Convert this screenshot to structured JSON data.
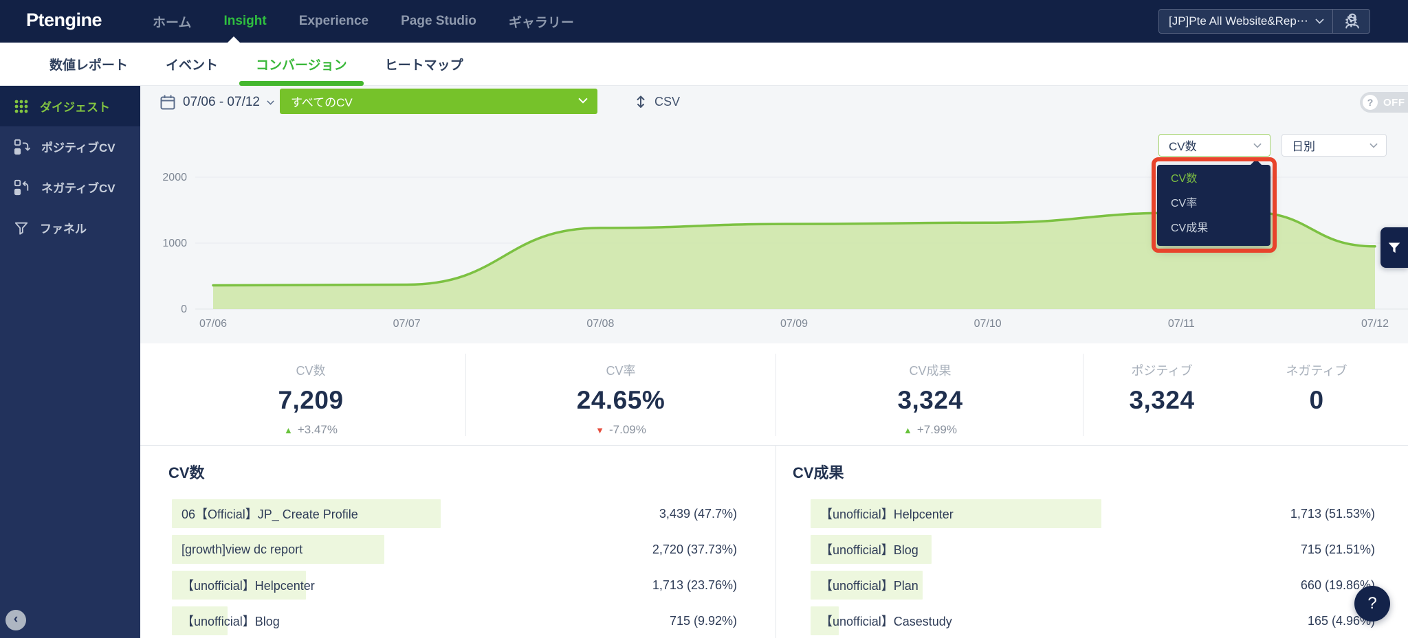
{
  "app": {
    "logo_text": "Ptengine"
  },
  "top_nav": {
    "items": [
      {
        "label": "ホーム"
      },
      {
        "label": "Insight"
      },
      {
        "label": "Experience"
      },
      {
        "label": "Page Studio"
      },
      {
        "label": "ギャラリー"
      }
    ],
    "workspace_selector": {
      "value": "[JP]Pte All Website&Rep⋯"
    }
  },
  "sub_nav": {
    "tabs": [
      {
        "label": "数値レポート"
      },
      {
        "label": "イベント"
      },
      {
        "label": "コンバージョン"
      },
      {
        "label": "ヒートマップ"
      }
    ]
  },
  "sidebar": {
    "items": [
      {
        "label": "ダイジェスト"
      },
      {
        "label": "ポジティブCV"
      },
      {
        "label": "ネガティブCV"
      },
      {
        "label": "ファネル"
      }
    ]
  },
  "toolbar": {
    "date_range": "07/06 - 07/12",
    "cv_filter_value": "すべてのCV",
    "csv_label": "CSV",
    "help_toggle": {
      "icon": "?",
      "state": "OFF"
    }
  },
  "chart_controls": {
    "metric_value": "CV数",
    "interval_value": "日別",
    "dropdown_options": [
      {
        "label": "CV数",
        "selected": true
      },
      {
        "label": "CV率",
        "selected": false
      },
      {
        "label": "CV成果",
        "selected": false
      }
    ]
  },
  "chart_data": {
    "type": "area",
    "series": [
      {
        "name": "CV数",
        "x": [
          0,
          1,
          2,
          3,
          4,
          5,
          5.35,
          6
        ],
        "values": [
          360,
          370,
          1230,
          1290,
          1310,
          1460,
          1470,
          950
        ]
      }
    ],
    "x_tick_labels": [
      "07/06",
      "07/07",
      "07/08",
      "07/09",
      "07/10",
      "07/11",
      "07/12"
    ],
    "y_ticks": [
      0,
      1000,
      2000
    ],
    "y_tick_labels": [
      "0",
      "1000",
      "2000"
    ],
    "ylim": [
      0,
      2000
    ],
    "grid": "horizontal",
    "line_color": "#7CC142",
    "fill_color": "#CFE7AB"
  },
  "stats": [
    {
      "label": "CV数",
      "value": "7,209",
      "delta": "+3.47%",
      "trend": "up"
    },
    {
      "label": "CV率",
      "value": "24.65%",
      "delta": "-7.09%",
      "trend": "down"
    },
    {
      "label": "CV成果",
      "value": "3,324",
      "delta": "+7.99%",
      "trend": "up"
    },
    {
      "label": "ポジティブ",
      "value": "3,324",
      "delta": "",
      "trend": "none"
    },
    {
      "label": "ネガティブ",
      "value": "0",
      "delta": "",
      "trend": "none"
    }
  ],
  "tables": [
    {
      "title": "CV数",
      "rows": [
        {
          "label": "06【Official】JP_ Create Profile",
          "value_display": "3,439 (47.7%)",
          "value": 3439,
          "pct": 47.7
        },
        {
          "label": "[growth]view dc report",
          "value_display": "2,720 (37.73%)",
          "value": 2720,
          "pct": 37.73
        },
        {
          "label": "【unofficial】Helpcenter",
          "value_display": "1,713 (23.76%)",
          "value": 1713,
          "pct": 23.76
        },
        {
          "label": "【unofficial】Blog",
          "value_display": "715 (9.92%)",
          "value": 715,
          "pct": 9.92
        }
      ]
    },
    {
      "title": "CV成果",
      "rows": [
        {
          "label": "【unofficial】Helpcenter",
          "value_display": "1,713 (51.53%)",
          "value": 1713,
          "pct": 51.53
        },
        {
          "label": "【unofficial】Blog",
          "value_display": "715 (21.51%)",
          "value": 715,
          "pct": 21.51
        },
        {
          "label": "【unofficial】Plan",
          "value_display": "660 (19.86%)",
          "value": 660,
          "pct": 19.86
        },
        {
          "label": "【unofficial】Casestudy",
          "value_display": "165 (4.96%)",
          "value": 165,
          "pct": 4.96
        }
      ]
    }
  ],
  "floating": {
    "collapse_icon": "‹",
    "help_icon": "?"
  },
  "colors": {
    "nav_navy": "#122145",
    "sidebar_navy": "#22325C",
    "accent_green": "#76C22A",
    "tab_green": "#3AB83A",
    "chart_line": "#7CC142",
    "chart_fill": "#CFE7AB",
    "bar_green": "#EDF7DE",
    "annotation_red": "#E8432B",
    "positive": "#67C23A",
    "negative": "#E64D3D"
  }
}
